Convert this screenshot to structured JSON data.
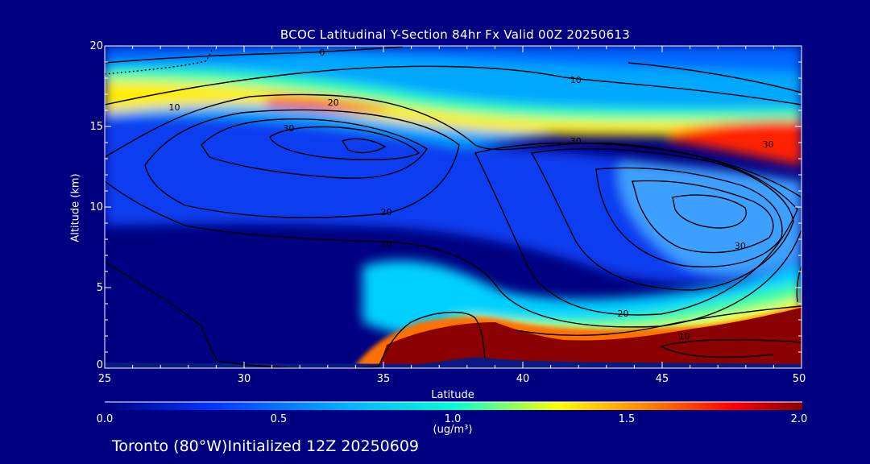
{
  "chart_data": {
    "type": "contour",
    "title": "BCOC Latitudinal Y-Section 84hr  Fx Valid 00Z 20250613",
    "xlabel": "Latitude",
    "ylabel": "Altitude (km)",
    "xlim": [
      25,
      50
    ],
    "ylim": [
      0,
      20
    ],
    "x_ticks": [
      "25",
      "30",
      "35",
      "40",
      "45",
      "50"
    ],
    "y_ticks": [
      "0",
      "5",
      "10",
      "15",
      "20"
    ],
    "colorbar": {
      "range": [
        0.0,
        2.0
      ],
      "ticks": [
        "0.0",
        "0.5",
        "1.0",
        "1.5",
        "2.0"
      ],
      "unit": "(ug/m³)",
      "colors": [
        "#000080",
        "#0033ff",
        "#00b4ff",
        "#00ffd0",
        "#ffff00",
        "#ff8000",
        "#ff0000",
        "#8b0000"
      ]
    },
    "contour_labels": [
      {
        "text": "0",
        "lat": 32.8,
        "alt": 19.6
      },
      {
        "text": "10",
        "lat": 27.5,
        "alt": 16.2
      },
      {
        "text": "10",
        "lat": 41.9,
        "alt": 17.9
      },
      {
        "text": "20",
        "lat": 33.2,
        "alt": 16.5
      },
      {
        "text": "30",
        "lat": 31.6,
        "alt": 14.9
      },
      {
        "text": "30",
        "lat": 41.9,
        "alt": 14.1
      },
      {
        "text": "30",
        "lat": 48.8,
        "alt": 13.9
      },
      {
        "text": "20",
        "lat": 35.1,
        "alt": 9.7
      },
      {
        "text": "10",
        "lat": 35.1,
        "alt": 7.7
      },
      {
        "text": "20",
        "lat": 43.6,
        "alt": 3.4
      },
      {
        "text": "10",
        "lat": 45.8,
        "alt": 2.0
      },
      {
        "text": "30",
        "lat": 47.8,
        "alt": 7.6
      }
    ],
    "concentration_regions": [
      {
        "level": 0.35,
        "color": "#0033ff"
      },
      {
        "level": 0.7,
        "color": "#00b4ff"
      },
      {
        "level": 1.0,
        "color": "#00ffd0"
      },
      {
        "level": 1.2,
        "color": "#ffff00"
      },
      {
        "level": 1.5,
        "color": "#ff8000"
      },
      {
        "level": 2.0,
        "color": "#8b0000"
      }
    ]
  },
  "footer": "Toronto (80°W)Initialized 12Z 20250609"
}
